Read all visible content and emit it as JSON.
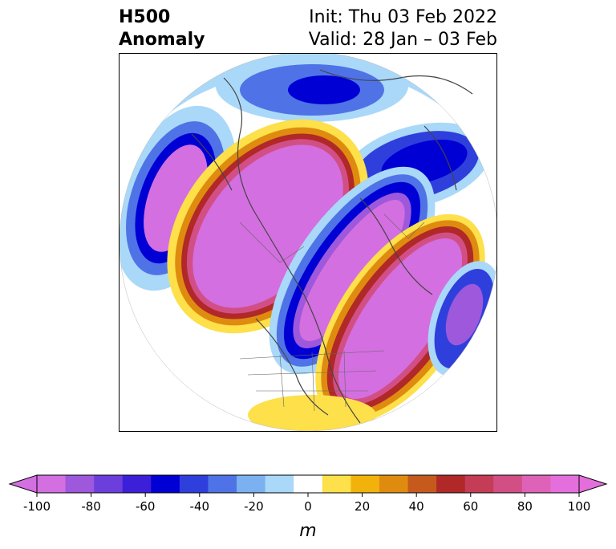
{
  "title": {
    "left_line1": "H500",
    "left_line2": "Anomaly",
    "right_line1": "Init: Thu 03 Feb 2022",
    "right_line2": "Valid: 28 Jan – 03 Feb"
  },
  "colorbar": {
    "unit": "m",
    "ticks": [
      "-100",
      "-80",
      "-60",
      "-40",
      "-20",
      "0",
      "20",
      "40",
      "60",
      "80",
      "100"
    ],
    "tick_values": [
      -100,
      -80,
      -60,
      -40,
      -20,
      0,
      20,
      40,
      60,
      80,
      100
    ],
    "extend": "both",
    "bins": [
      {
        "color": "#d36fe0"
      },
      {
        "color": "#9d58dc"
      },
      {
        "color": "#6c3fdc"
      },
      {
        "color": "#3c1fd8"
      },
      {
        "color": "#0000d4"
      },
      {
        "color": "#2f3fdc"
      },
      {
        "color": "#4f73e6"
      },
      {
        "color": "#7bb1f0"
      },
      {
        "color": "#aad8f8"
      },
      {
        "color": "#ffffff"
      },
      {
        "color": "#fde04a"
      },
      {
        "color": "#f2b20c"
      },
      {
        "color": "#df8b10"
      },
      {
        "color": "#c55a1c"
      },
      {
        "color": "#b02828"
      },
      {
        "color": "#c43c56"
      },
      {
        "color": "#d24f86"
      },
      {
        "color": "#de63b8"
      },
      {
        "color": "#e46fdc"
      }
    ],
    "under_color": "#d36fe0",
    "over_color": "#e46fdc"
  },
  "map": {
    "projection": "north-polar-stereographic",
    "field": "500 hPa geopotential height anomaly",
    "features": [
      "coastlines",
      "country-borders",
      "state-borders"
    ]
  }
}
